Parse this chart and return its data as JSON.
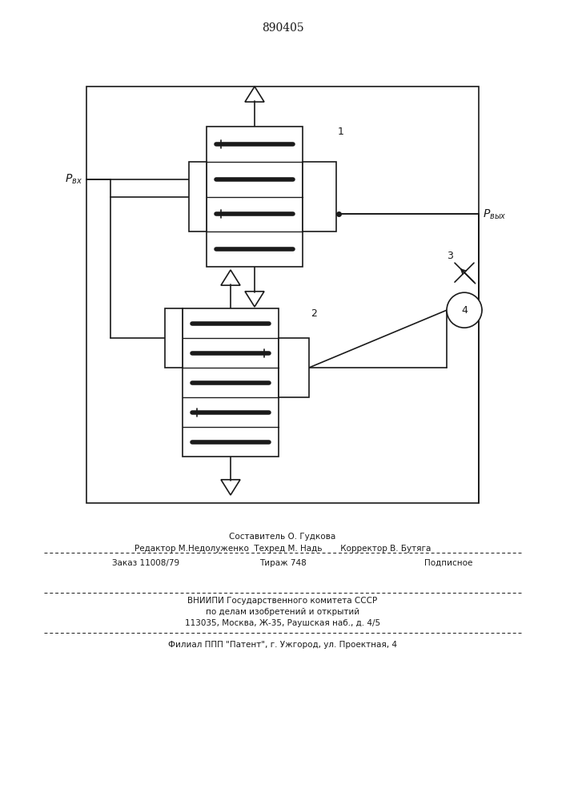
{
  "title": "890405",
  "bg_color": "#ffffff",
  "line_color": "#1a1a1a",
  "lw": 1.2,
  "footer_lines": [
    "Составитель О. Гудкова",
    "Редактор М.Недолуженко  Техред М. Надь       Корректор В. Бутяга",
    "Заказ 11008/79",
    "Тираж 748",
    "Подписное",
    "ВНИИПИ Государственного комитета СССР",
    "по делам изобретений и открытий",
    "113035, Москва, Ж-35, Раушская наб., д. 4/5",
    "Филиал ППП \"Патент\", г. Ужгород, ул. Проектная, 4"
  ]
}
